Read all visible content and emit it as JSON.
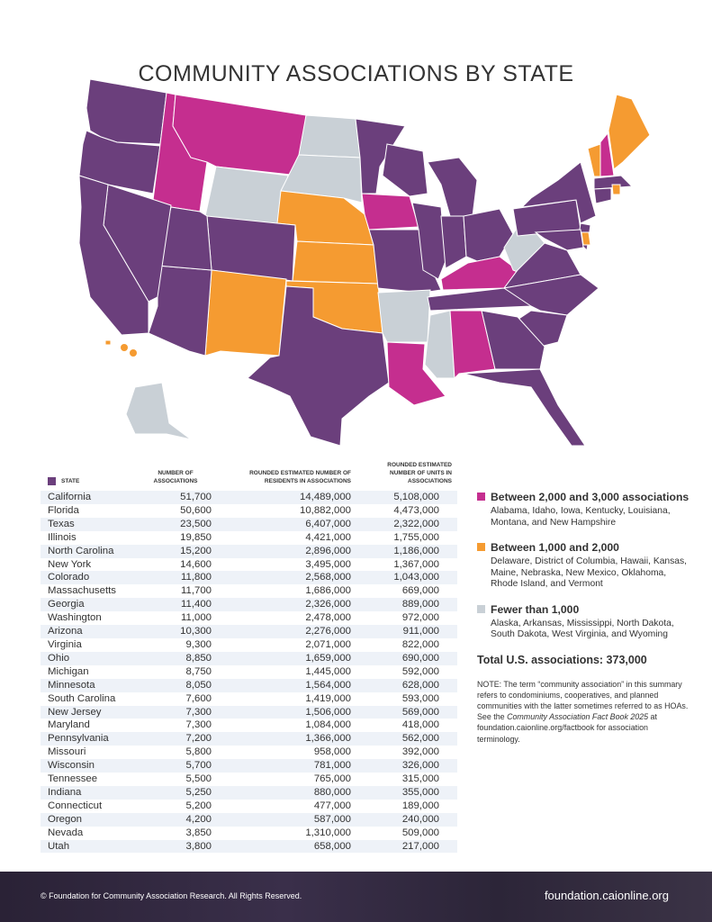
{
  "title": "COMMUNITY ASSOCIATIONS BY STATE",
  "colors": {
    "purple": "#6b3f7c",
    "magenta": "#c52e8f",
    "orange": "#f59b31",
    "gray": "#c9d0d6"
  },
  "map": {
    "magenta_states": [
      "AL",
      "ID",
      "IA",
      "KY",
      "LA",
      "MT",
      "NH"
    ],
    "orange_states": [
      "DE",
      "HI",
      "KS",
      "ME",
      "NE",
      "NM",
      "OK",
      "RI",
      "VT"
    ],
    "gray_states": [
      "AK",
      "AR",
      "MS",
      "ND",
      "SD",
      "WV",
      "WY"
    ]
  },
  "table": {
    "headers": [
      "STATE",
      "NUMBER OF ASSOCIATIONS",
      "ROUNDED ESTIMATED NUMBER OF RESIDENTS IN ASSOCIATIONS",
      "ROUNDED ESTIMATED NUMBER OF UNITS IN ASSOCIATIONS"
    ],
    "rows": [
      [
        "California",
        "51,700",
        "14,489,000",
        "5,108,000"
      ],
      [
        "Florida",
        "50,600",
        "10,882,000",
        "4,473,000"
      ],
      [
        "Texas",
        "23,500",
        "6,407,000",
        "2,322,000"
      ],
      [
        "Illinois",
        "19,850",
        "4,421,000",
        "1,755,000"
      ],
      [
        "North Carolina",
        "15,200",
        "2,896,000",
        "1,186,000"
      ],
      [
        "New York",
        "14,600",
        "3,495,000",
        "1,367,000"
      ],
      [
        "Colorado",
        "11,800",
        "2,568,000",
        "1,043,000"
      ],
      [
        "Massachusetts",
        "11,700",
        "1,686,000",
        "669,000"
      ],
      [
        "Georgia",
        "11,400",
        "2,326,000",
        "889,000"
      ],
      [
        "Washington",
        "11,000",
        "2,478,000",
        "972,000"
      ],
      [
        "Arizona",
        "10,300",
        "2,276,000",
        "911,000"
      ],
      [
        "Virginia",
        "9,300",
        "2,071,000",
        "822,000"
      ],
      [
        "Ohio",
        "8,850",
        "1,659,000",
        "690,000"
      ],
      [
        "Michigan",
        "8,750",
        "1,445,000",
        "592,000"
      ],
      [
        "Minnesota",
        "8,050",
        "1,564,000",
        "628,000"
      ],
      [
        "South Carolina",
        "7,600",
        "1,419,000",
        "593,000"
      ],
      [
        "New Jersey",
        "7,300",
        "1,506,000",
        "569,000"
      ],
      [
        "Maryland",
        "7,300",
        "1,084,000",
        "418,000"
      ],
      [
        "Pennsylvania",
        "7,200",
        "1,366,000",
        "562,000"
      ],
      [
        "Missouri",
        "5,800",
        "958,000",
        "392,000"
      ],
      [
        "Wisconsin",
        "5,700",
        "781,000",
        "326,000"
      ],
      [
        "Tennessee",
        "5,500",
        "765,000",
        "315,000"
      ],
      [
        "Indiana",
        "5,250",
        "880,000",
        "355,000"
      ],
      [
        "Connecticut",
        "5,200",
        "477,000",
        "189,000"
      ],
      [
        "Oregon",
        "4,200",
        "587,000",
        "240,000"
      ],
      [
        "Nevada",
        "3,850",
        "1,310,000",
        "509,000"
      ],
      [
        "Utah",
        "3,800",
        "658,000",
        "217,000"
      ]
    ]
  },
  "legend": [
    {
      "title": "Between 2,000 and 3,000 associations",
      "states": "Alabama, Idaho, Iowa, Kentucky, Louisiana, Montana, and New Hampshire",
      "color": "#c52e8f"
    },
    {
      "title": "Between 1,000 and 2,000",
      "states": "Delaware, District of Columbia, Hawaii, Kansas, Maine, Nebraska, New Mexico, Oklahoma, Rhode Island, and Vermont",
      "color": "#f59b31"
    },
    {
      "title": "Fewer than 1,000",
      "states": "Alaska, Arkansas, Mississippi, North Dakota, South Dakota, West Virginia, and Wyoming",
      "color": "#c9d0d6"
    }
  ],
  "total": "Total U.S. associations: 373,000",
  "note": {
    "pre": "NOTE: The term “community association” in this summary refers to condominiums, cooperatives, and planned communities with the latter sometimes referred to as HOAs. See the ",
    "book": "Community Association Fact Book 2025",
    "post": " at foundation.caionline.org/factbook for association terminology."
  },
  "footer": {
    "copyright": "© Foundation for Community Association Research. All Rights Reserved.",
    "url": "foundation.caionline.org"
  }
}
